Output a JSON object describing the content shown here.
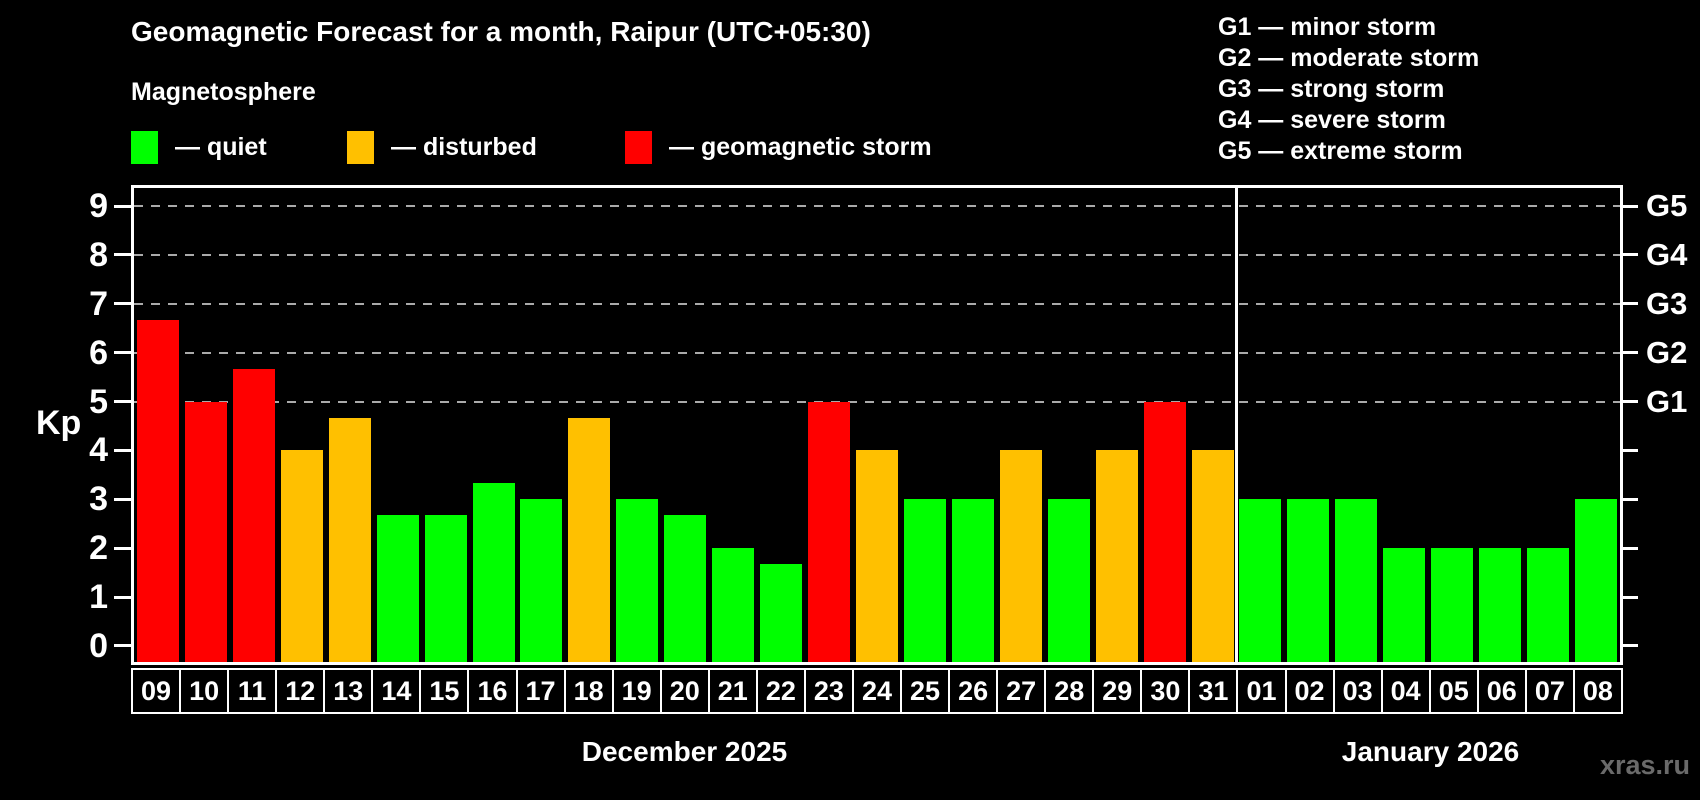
{
  "header": {
    "title": "Geomagnetic Forecast for a month, Raipur (UTC+05:30)",
    "subtitle": "Magnetosphere"
  },
  "legend": [
    {
      "key": "quiet",
      "label": "— quiet",
      "color": "#00ff00"
    },
    {
      "key": "disturbed",
      "label": "— disturbed",
      "color": "#ffc000"
    },
    {
      "key": "storm",
      "label": "— geomagnetic storm",
      "color": "#ff0000"
    }
  ],
  "g_legend": [
    "G1 — minor storm",
    "G2 — moderate storm",
    "G3 — strong storm",
    "G4 — severe storm",
    "G5 — extreme storm"
  ],
  "watermark": "xras.ru",
  "chart_data": {
    "type": "bar",
    "title": "Geomagnetic Forecast for a month, Raipur (UTC+05:30)",
    "ylabel": "Kp",
    "ylim": [
      0,
      9
    ],
    "y_ticks": [
      0,
      1,
      2,
      3,
      4,
      5,
      6,
      7,
      8,
      9
    ],
    "gridlines_at": [
      5,
      6,
      7,
      8,
      9
    ],
    "grid": true,
    "legend_position": "top-left",
    "right_axis_labels": {
      "5": "G1",
      "6": "G2",
      "7": "G3",
      "8": "G4",
      "9": "G5"
    },
    "color_map": {
      "quiet": "#00ff00",
      "disturbed": "#ffc000",
      "storm": "#ff0000"
    },
    "grid_color": "#aaaaaa",
    "groups": [
      {
        "label": "December 2025",
        "bars": [
          {
            "day": "09",
            "value": 6.67,
            "state": "storm"
          },
          {
            "day": "10",
            "value": 5.0,
            "state": "storm"
          },
          {
            "day": "11",
            "value": 5.67,
            "state": "storm"
          },
          {
            "day": "12",
            "value": 4.0,
            "state": "disturbed"
          },
          {
            "day": "13",
            "value": 4.67,
            "state": "disturbed"
          },
          {
            "day": "14",
            "value": 2.67,
            "state": "quiet"
          },
          {
            "day": "15",
            "value": 2.67,
            "state": "quiet"
          },
          {
            "day": "16",
            "value": 3.33,
            "state": "quiet"
          },
          {
            "day": "17",
            "value": 3.0,
            "state": "quiet"
          },
          {
            "day": "18",
            "value": 4.67,
            "state": "disturbed"
          },
          {
            "day": "19",
            "value": 3.0,
            "state": "quiet"
          },
          {
            "day": "20",
            "value": 2.67,
            "state": "quiet"
          },
          {
            "day": "21",
            "value": 2.0,
            "state": "quiet"
          },
          {
            "day": "22",
            "value": 1.67,
            "state": "quiet"
          },
          {
            "day": "23",
            "value": 5.0,
            "state": "storm"
          },
          {
            "day": "24",
            "value": 4.0,
            "state": "disturbed"
          },
          {
            "day": "25",
            "value": 3.0,
            "state": "quiet"
          },
          {
            "day": "26",
            "value": 3.0,
            "state": "quiet"
          },
          {
            "day": "27",
            "value": 4.0,
            "state": "disturbed"
          },
          {
            "day": "28",
            "value": 3.0,
            "state": "quiet"
          },
          {
            "day": "29",
            "value": 4.0,
            "state": "disturbed"
          },
          {
            "day": "30",
            "value": 5.0,
            "state": "storm"
          },
          {
            "day": "31",
            "value": 4.0,
            "state": "disturbed"
          }
        ]
      },
      {
        "label": "January 2026",
        "bars": [
          {
            "day": "01",
            "value": 3.0,
            "state": "quiet"
          },
          {
            "day": "02",
            "value": 3.0,
            "state": "quiet"
          },
          {
            "day": "03",
            "value": 3.0,
            "state": "quiet"
          },
          {
            "day": "04",
            "value": 2.0,
            "state": "quiet"
          },
          {
            "day": "05",
            "value": 2.0,
            "state": "quiet"
          },
          {
            "day": "06",
            "value": 2.0,
            "state": "quiet"
          },
          {
            "day": "07",
            "value": 2.0,
            "state": "quiet"
          },
          {
            "day": "08",
            "value": 3.0,
            "state": "quiet"
          }
        ]
      }
    ]
  }
}
